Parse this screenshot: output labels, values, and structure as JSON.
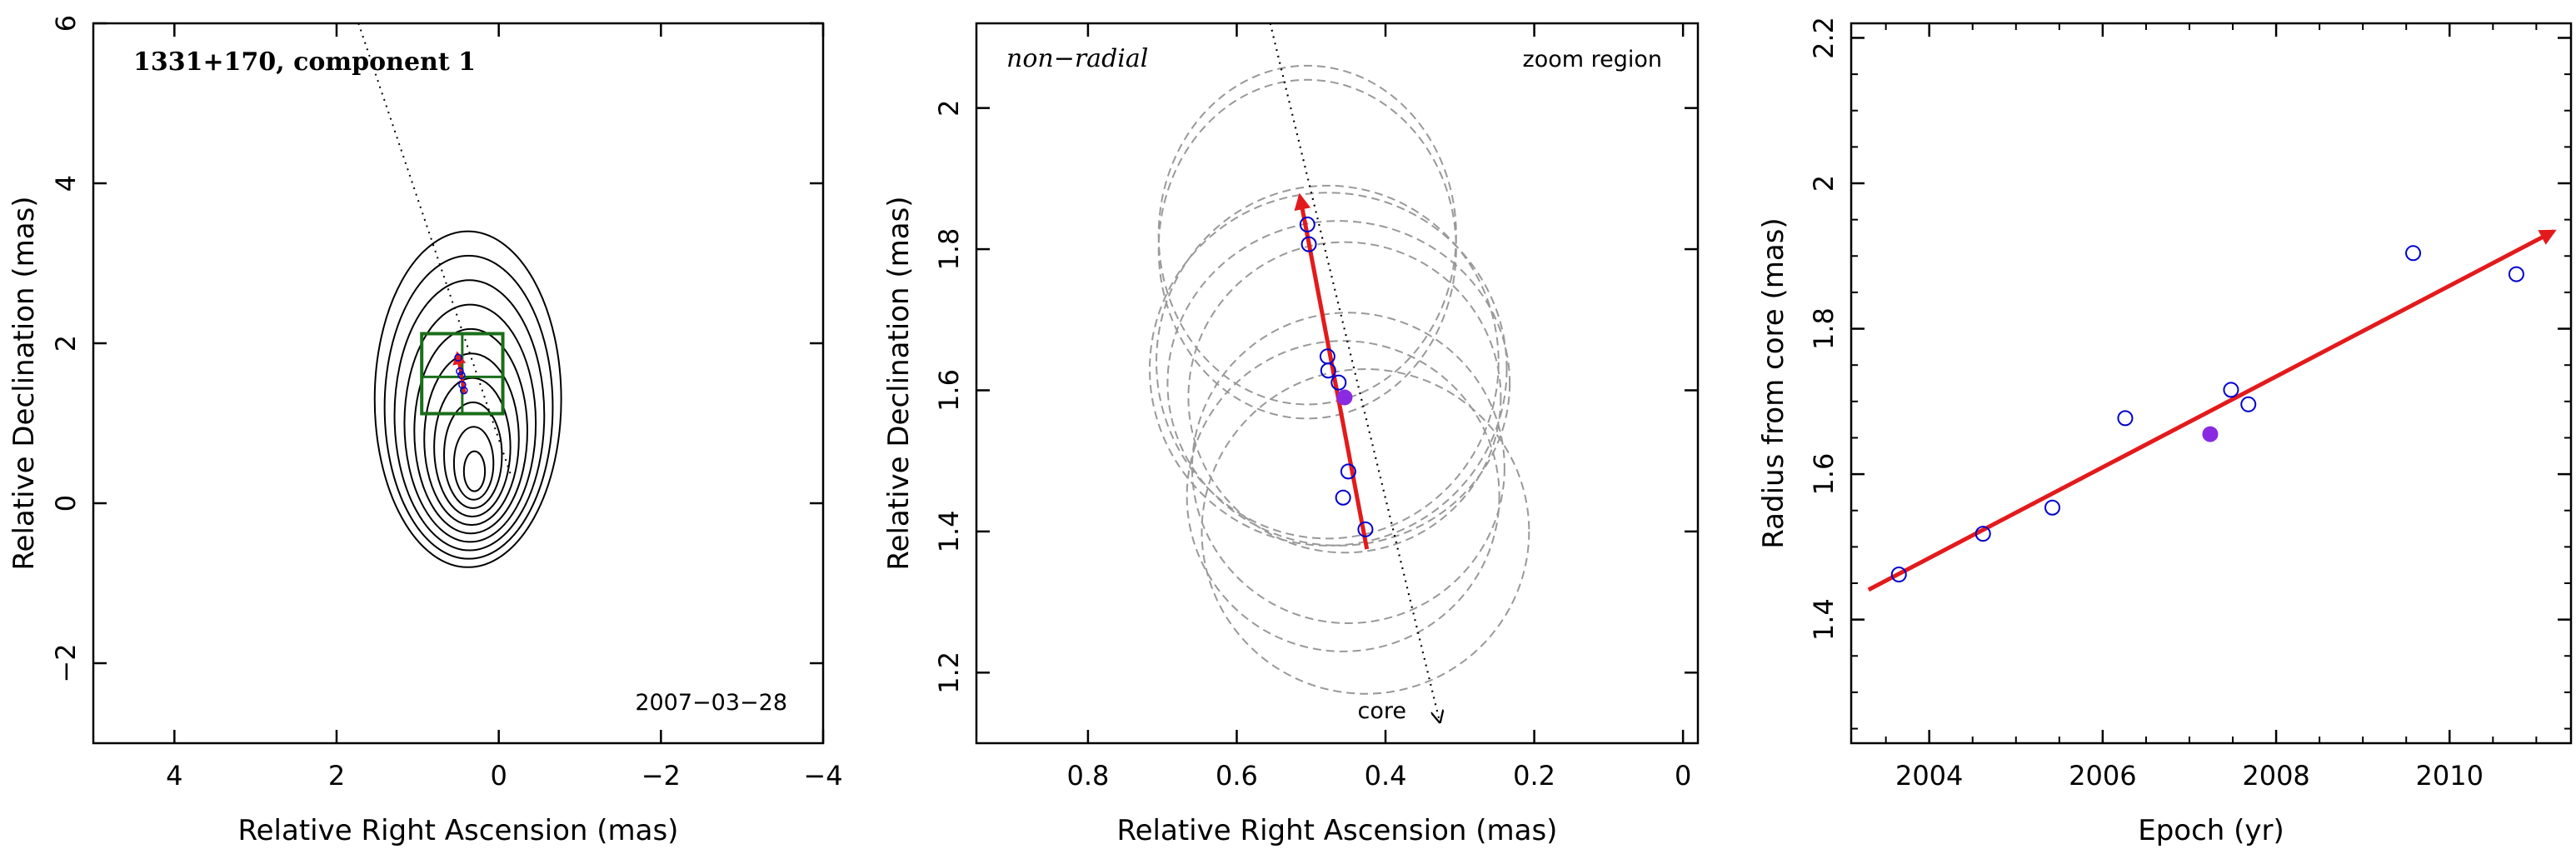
{
  "chart_data": [
    {
      "type": "contour",
      "title": "1331+170, component 1",
      "xlabel": "Relative Right Ascension (mas)",
      "ylabel": "Relative Declination (mas)",
      "xlim": [
        5,
        -4
      ],
      "ylim": [
        -3,
        6
      ],
      "xticks": [
        4,
        2,
        0,
        -2,
        -4
      ],
      "xtick_labels": [
        "4",
        "2",
        "0",
        "−2",
        "−4"
      ],
      "yticks": [
        -2,
        0,
        2,
        4,
        6
      ],
      "ytick_labels": [
        "−2",
        "0",
        "2",
        "4",
        "6"
      ],
      "annotation": "2007−03−28",
      "colors": {
        "contours": "#000000",
        "box": "#1a6e1a",
        "arrow": "#e31a1c",
        "points": "#0000cc"
      }
    },
    {
      "type": "scatter",
      "title": "non−radial",
      "annotation": "zoom region",
      "core_label": "core",
      "xlabel": "Relative Right Ascension (mas)",
      "ylabel": "Relative Declination (mas)",
      "xlim": [
        0.95,
        -0.02
      ],
      "ylim": [
        1.1,
        2.12
      ],
      "xticks": [
        0.8,
        0.6,
        0.4,
        0.2,
        0
      ],
      "xtick_labels": [
        "0.8",
        "0.6",
        "0.4",
        "0.2",
        "0"
      ],
      "yticks": [
        1.2,
        1.4,
        1.6,
        1.8,
        2.0
      ],
      "ytick_labels": [
        "1.2",
        "1.4",
        "1.6",
        "1.8",
        "2"
      ],
      "points_open": [
        {
          "x": 0.505,
          "y": 1.835
        },
        {
          "x": 0.503,
          "y": 1.807
        },
        {
          "x": 0.478,
          "y": 1.648
        },
        {
          "x": 0.477,
          "y": 1.628
        },
        {
          "x": 0.463,
          "y": 1.611
        },
        {
          "x": 0.45,
          "y": 1.485
        },
        {
          "x": 0.457,
          "y": 1.448
        },
        {
          "x": 0.427,
          "y": 1.403
        }
      ],
      "point_filled": {
        "x": 0.455,
        "y": 1.59
      },
      "beam_ellipses": [
        {
          "x": 0.505,
          "y": 1.82,
          "rx": 0.2,
          "ry": 0.24
        },
        {
          "x": 0.505,
          "y": 1.8,
          "rx": 0.2,
          "ry": 0.24
        },
        {
          "x": 0.478,
          "y": 1.64,
          "rx": 0.23,
          "ry": 0.25
        },
        {
          "x": 0.477,
          "y": 1.63,
          "rx": 0.24,
          "ry": 0.25
        },
        {
          "x": 0.463,
          "y": 1.61,
          "rx": 0.23,
          "ry": 0.23
        },
        {
          "x": 0.455,
          "y": 1.59,
          "rx": 0.21,
          "ry": 0.22
        },
        {
          "x": 0.45,
          "y": 1.49,
          "rx": 0.21,
          "ry": 0.22
        },
        {
          "x": 0.457,
          "y": 1.45,
          "rx": 0.21,
          "ry": 0.22
        },
        {
          "x": 0.427,
          "y": 1.4,
          "rx": 0.22,
          "ry": 0.23
        }
      ],
      "motion_arrow": {
        "from": {
          "x": 0.425,
          "y": 1.375
        },
        "to": {
          "x": 0.515,
          "y": 1.875
        }
      },
      "core_direction": {
        "from": {
          "x": 0.555,
          "y": 2.12
        },
        "to": {
          "x": 0.327,
          "y": 1.13
        }
      },
      "colors": {
        "points": "#0000cc",
        "filled": "#8a2be2",
        "arrow": "#e31a1c",
        "ellipses": "#999999"
      }
    },
    {
      "type": "scatter",
      "xlabel": "Epoch (yr)",
      "ylabel": "Radius from core (mas)",
      "xlim": [
        2003.1,
        2011.4
      ],
      "ylim": [
        1.23,
        2.22
      ],
      "xticks": [
        2004,
        2006,
        2008,
        2010
      ],
      "xtick_labels": [
        "2004",
        "2006",
        "2008",
        "2010"
      ],
      "yticks": [
        1.4,
        1.6,
        1.8,
        2.0,
        2.2
      ],
      "ytick_labels": [
        "1.4",
        "1.6",
        "1.8",
        "2",
        "2.2"
      ],
      "points_open": [
        {
          "x": 2003.65,
          "y": 1.462
        },
        {
          "x": 2004.62,
          "y": 1.518
        },
        {
          "x": 2005.42,
          "y": 1.554
        },
        {
          "x": 2006.26,
          "y": 1.677
        },
        {
          "x": 2007.48,
          "y": 1.716
        },
        {
          "x": 2007.68,
          "y": 1.696
        },
        {
          "x": 2009.58,
          "y": 1.904
        },
        {
          "x": 2010.77,
          "y": 1.875
        }
      ],
      "point_filled": {
        "x": 2007.24,
        "y": 1.655
      },
      "fit_arrow": {
        "from": {
          "x": 2003.3,
          "y": 1.441
        },
        "to": {
          "x": 2011.2,
          "y": 1.934
        }
      },
      "colors": {
        "points": "#0000cc",
        "filled": "#8a2be2",
        "arrow": "#e31a1c"
      }
    }
  ]
}
